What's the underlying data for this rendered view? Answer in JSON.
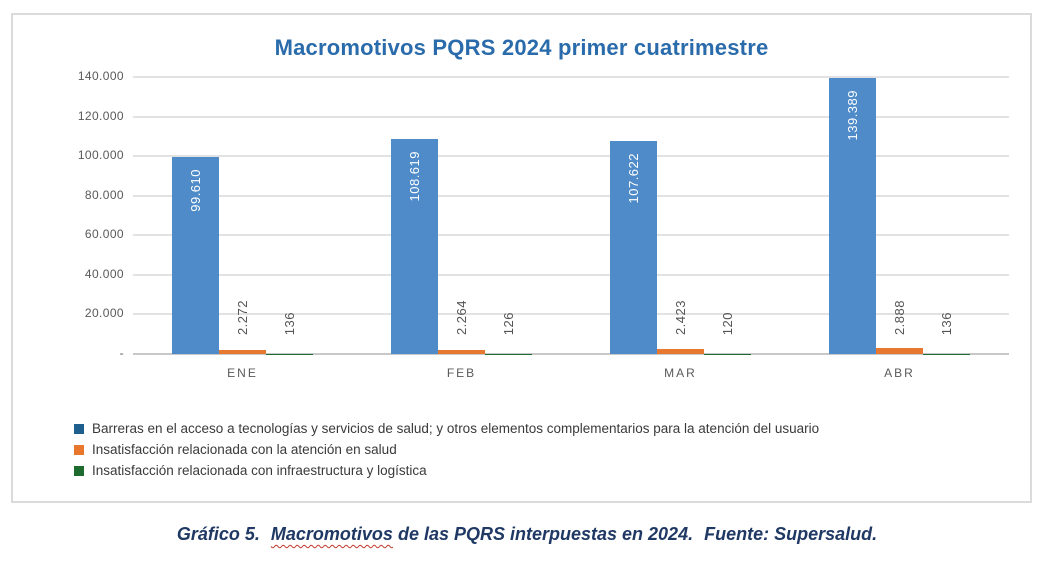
{
  "title": "Macromotivos PQRS 2024 primer cuatrimestre",
  "caption": {
    "prefix": "Gráfico 5.",
    "misspelled_word": "Macromotivos",
    "middle": "de las PQRS interpuestas en 2024.",
    "source": "Fuente: Supersalud."
  },
  "colors": {
    "title": "#2A6BAB",
    "caption": "#1F3864",
    "figure_border": "#DBDBDB",
    "gridline": "#E2E2E2",
    "axis_line": "#C8C8C8",
    "tick_text": "#595959",
    "squiggle": "#C0392B"
  },
  "chart_data": {
    "type": "bar",
    "title": "Macromotivos PQRS 2024 primer cuatrimestre",
    "categories": [
      "ENE",
      "FEB",
      "MAR",
      "ABR"
    ],
    "series": [
      {
        "name": "Barreras en el acceso a tecnologías y servicios de salud; y otros elementos complementarios para la atención del usuario",
        "color": "#4E8BC8",
        "legend_color": "#1E5F8E",
        "values": [
          99610,
          108619,
          107622,
          139389
        ],
        "labels": [
          "99.610",
          "108.619",
          "107.622",
          "139.389"
        ],
        "label_position": "inside-end",
        "label_color": "#FFFFFF"
      },
      {
        "name": "Insatisfacción relacionada con la atención en salud",
        "color": "#E6792F",
        "legend_color": "#E8762C",
        "values": [
          2272,
          2264,
          2423,
          2888
        ],
        "labels": [
          "2.272",
          "2.264",
          "2.423",
          "2.888"
        ],
        "label_position": "outside-end",
        "label_color": "#545454"
      },
      {
        "name": "Insatisfacción relacionada con infraestructura y logística",
        "color": "#1E6B2F",
        "legend_color": "#1E6B2F",
        "values": [
          136,
          126,
          120,
          136
        ],
        "labels": [
          "136",
          "126",
          "120",
          "136"
        ],
        "label_position": "outside-end",
        "label_color": "#545454"
      }
    ],
    "y_axis": {
      "ticks": [
        0,
        20000,
        40000,
        60000,
        80000,
        100000,
        120000,
        140000
      ],
      "tick_labels": [
        "-",
        "20.000",
        "40.000",
        "60.000",
        "80.000",
        "100.000",
        "120.000",
        "140.000"
      ],
      "max": 140000,
      "grid": true
    },
    "xlabel": "",
    "ylabel": "",
    "legend_position": "bottom-left"
  }
}
